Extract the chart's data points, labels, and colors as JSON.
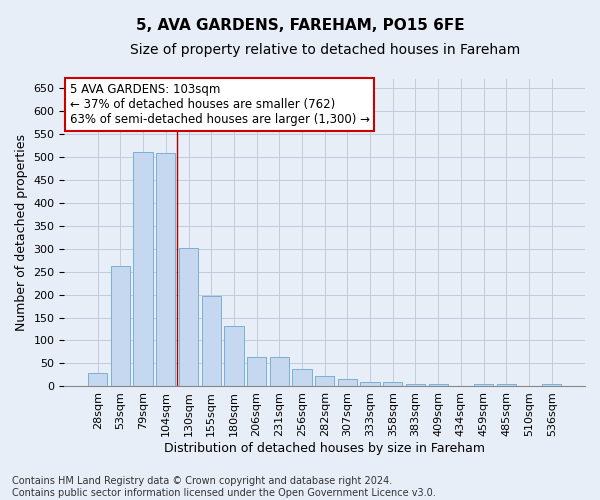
{
  "title1": "5, AVA GARDENS, FAREHAM, PO15 6FE",
  "title2": "Size of property relative to detached houses in Fareham",
  "xlabel": "Distribution of detached houses by size in Fareham",
  "ylabel": "Number of detached properties",
  "categories": [
    "28sqm",
    "53sqm",
    "79sqm",
    "104sqm",
    "130sqm",
    "155sqm",
    "180sqm",
    "206sqm",
    "231sqm",
    "256sqm",
    "282sqm",
    "307sqm",
    "333sqm",
    "358sqm",
    "383sqm",
    "409sqm",
    "434sqm",
    "459sqm",
    "485sqm",
    "510sqm",
    "536sqm"
  ],
  "values": [
    30,
    262,
    511,
    508,
    302,
    196,
    131,
    65,
    65,
    38,
    22,
    16,
    9,
    9,
    6,
    6,
    0,
    5,
    5,
    0,
    5
  ],
  "bar_color": "#c5d8f0",
  "bar_edgecolor": "#7aafd4",
  "vline_x": 3.5,
  "vline_color": "#aa0000",
  "annotation_box_text": "5 AVA GARDENS: 103sqm\n← 37% of detached houses are smaller (762)\n63% of semi-detached houses are larger (1,300) →",
  "ylim": [
    0,
    670
  ],
  "yticks": [
    0,
    50,
    100,
    150,
    200,
    250,
    300,
    350,
    400,
    450,
    500,
    550,
    600,
    650
  ],
  "footnote": "Contains HM Land Registry data © Crown copyright and database right 2024.\nContains public sector information licensed under the Open Government Licence v3.0.",
  "bg_color": "#e8eef8",
  "plot_bg_color": "#e8eef8",
  "grid_color": "#c0ccdc",
  "title1_fontsize": 11,
  "title2_fontsize": 10,
  "xlabel_fontsize": 9,
  "ylabel_fontsize": 9,
  "annotation_fontsize": 8.5,
  "tick_fontsize": 8,
  "footnote_fontsize": 7
}
